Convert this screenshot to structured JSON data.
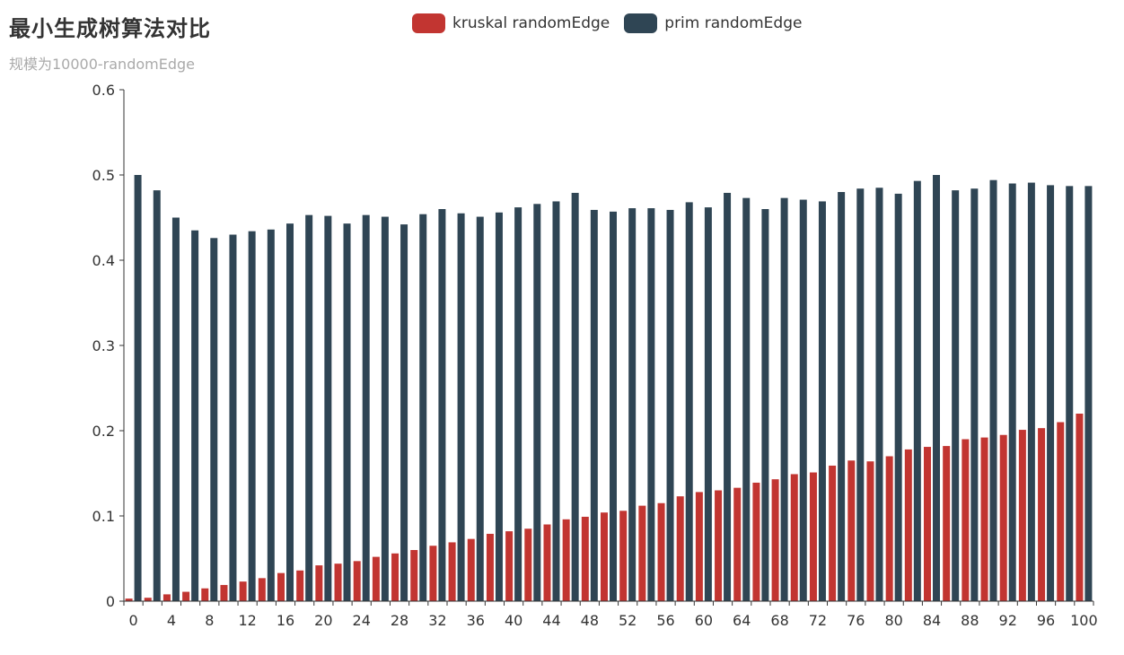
{
  "title": "最小生成树算法对比",
  "subtitle": "规模为10000-randomEdge",
  "chart_data": {
    "type": "bar",
    "title": "最小生成树算法对比",
    "subtitle": "规模为10000-randomEdge",
    "xlabel": "",
    "ylabel": "",
    "ylim": [
      0,
      0.6
    ],
    "yticks": [
      0,
      0.1,
      0.2,
      0.3,
      0.4,
      0.5,
      0.6
    ],
    "xtick_labels": [
      "0",
      "4",
      "8",
      "12",
      "16",
      "20",
      "24",
      "28",
      "32",
      "36",
      "40",
      "44",
      "48",
      "52",
      "56",
      "60",
      "64",
      "68",
      "72",
      "76",
      "80",
      "84",
      "88",
      "92",
      "96",
      "100"
    ],
    "legend_position": "top-center",
    "grid": false,
    "categories": [
      0,
      2,
      4,
      6,
      8,
      10,
      12,
      14,
      16,
      18,
      20,
      22,
      24,
      26,
      28,
      30,
      32,
      34,
      36,
      38,
      40,
      42,
      44,
      46,
      48,
      50,
      52,
      54,
      56,
      58,
      60,
      62,
      64,
      66,
      68,
      70,
      72,
      74,
      76,
      78,
      80,
      82,
      84,
      86,
      88,
      90,
      92,
      94,
      96,
      98,
      100
    ],
    "series": [
      {
        "name": "kruskal randomEdge",
        "color": "#c23531",
        "values": [
          0.003,
          0.004,
          0.008,
          0.011,
          0.015,
          0.019,
          0.023,
          0.027,
          0.033,
          0.036,
          0.042,
          0.044,
          0.047,
          0.052,
          0.056,
          0.06,
          0.065,
          0.069,
          0.073,
          0.079,
          0.082,
          0.085,
          0.09,
          0.096,
          0.099,
          0.104,
          0.106,
          0.112,
          0.115,
          0.123,
          0.128,
          0.13,
          0.133,
          0.139,
          0.143,
          0.149,
          0.151,
          0.159,
          0.165,
          0.164,
          0.17,
          0.178,
          0.181,
          0.182,
          0.19,
          0.192,
          0.195,
          0.201,
          0.203,
          0.21,
          0.22
        ]
      },
      {
        "name": "prim randomEdge",
        "color": "#2f4554",
        "values": [
          0.5,
          0.482,
          0.45,
          0.435,
          0.426,
          0.43,
          0.434,
          0.436,
          0.443,
          0.453,
          0.452,
          0.443,
          0.453,
          0.451,
          0.442,
          0.454,
          0.46,
          0.455,
          0.451,
          0.456,
          0.462,
          0.466,
          0.469,
          0.479,
          0.459,
          0.457,
          0.461,
          0.461,
          0.459,
          0.468,
          0.462,
          0.479,
          0.473,
          0.46,
          0.473,
          0.471,
          0.469,
          0.48,
          0.484,
          0.485,
          0.478,
          0.493,
          0.5,
          0.482,
          0.484,
          0.494,
          0.49,
          0.491,
          0.488,
          0.487,
          0.487
        ]
      }
    ]
  }
}
